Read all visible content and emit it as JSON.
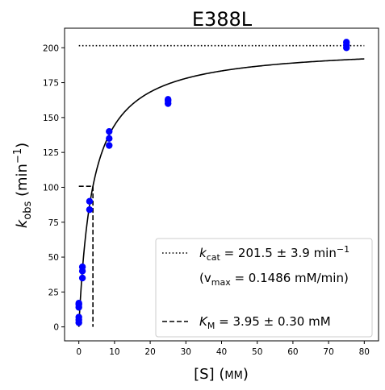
{
  "chart_data": {
    "type": "scatter",
    "title": "E388L",
    "xlabel": {
      "main": "[S] (",
      "unit": "mM",
      "close": ")"
    },
    "ylabel": {
      "k": "k",
      "sub": "obs",
      "units": "(min",
      "sup": "−1",
      "close": ")"
    },
    "xlim": [
      -4,
      84
    ],
    "ylim": [
      -10,
      214
    ],
    "xticks": [
      0,
      10,
      20,
      30,
      40,
      50,
      60,
      70,
      80
    ],
    "yticks": [
      0,
      25,
      50,
      75,
      100,
      125,
      150,
      175,
      200
    ],
    "points_color": "#0000ff",
    "points": [
      {
        "x": 0,
        "y": 3
      },
      {
        "x": 0,
        "y": 5
      },
      {
        "x": 0,
        "y": 7
      },
      {
        "x": 0,
        "y": 14
      },
      {
        "x": 0,
        "y": 16
      },
      {
        "x": 0,
        "y": 17
      },
      {
        "x": 1,
        "y": 35
      },
      {
        "x": 1,
        "y": 40
      },
      {
        "x": 1,
        "y": 43
      },
      {
        "x": 3,
        "y": 84
      },
      {
        "x": 3,
        "y": 90
      },
      {
        "x": 8.5,
        "y": 130
      },
      {
        "x": 8.5,
        "y": 135
      },
      {
        "x": 8.5,
        "y": 140
      },
      {
        "x": 25,
        "y": 160
      },
      {
        "x": 25,
        "y": 162
      },
      {
        "x": 25,
        "y": 163
      },
      {
        "x": 75,
        "y": 200
      },
      {
        "x": 75,
        "y": 202
      },
      {
        "x": 75,
        "y": 204
      }
    ],
    "fit": {
      "kcat": 201.5,
      "KM": 3.95,
      "x_range": [
        0,
        80
      ]
    },
    "kcat_line": {
      "y": 201.5,
      "x_range": [
        0,
        80
      ]
    },
    "KM_lines": {
      "x": 3.95,
      "y": 100.75,
      "x_start": 0
    },
    "legend": {
      "position": "lower-right",
      "kcat": {
        "k": "k",
        "sub": "cat",
        "value": " = 201.5 ± 3.9 min",
        "sup": "−1"
      },
      "vmax": {
        "open": "(v",
        "sub": "max",
        "value": " = 0.1486 mM/min)"
      },
      "KM": {
        "k": "K",
        "sub": "M",
        "value": " = 3.95 ± 0.30 mM"
      }
    }
  }
}
